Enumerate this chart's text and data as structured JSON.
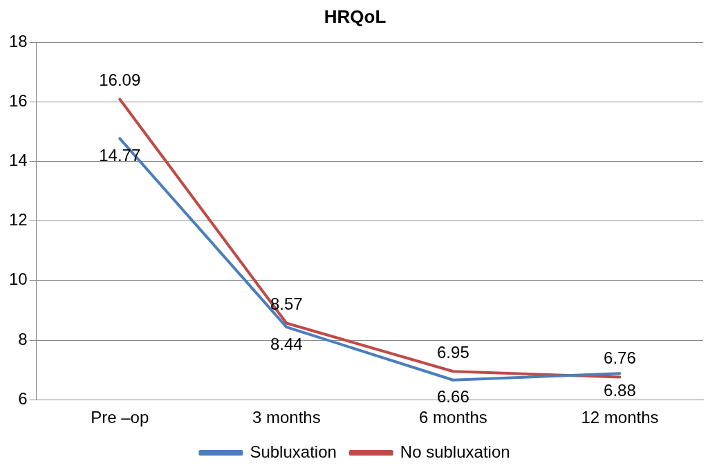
{
  "chart_data": {
    "type": "line",
    "title": "HRQoL",
    "categories": [
      "Pre –op",
      "3 months",
      "6 months",
      "12 months"
    ],
    "series": [
      {
        "name": "Subluxation",
        "color": "#4a7ebb",
        "values": [
          14.77,
          8.44,
          6.66,
          6.88
        ]
      },
      {
        "name": "No subluxation",
        "color": "#be4b48",
        "values": [
          16.09,
          8.57,
          6.95,
          6.76
        ]
      }
    ],
    "ylim": [
      6,
      18
    ],
    "yticks": [
      6,
      8,
      10,
      12,
      14,
      16,
      18
    ],
    "grid": "y",
    "legend": "bottom",
    "marker": "none",
    "line_style": "solid",
    "data_labels": true
  }
}
